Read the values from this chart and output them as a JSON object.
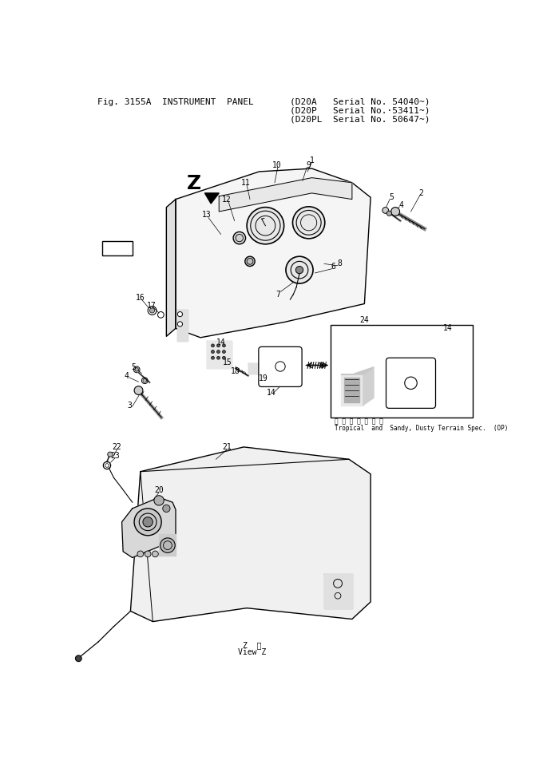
{
  "bg_color": "#ffffff",
  "line_color": "#000000",
  "fig_width": 6.75,
  "fig_height": 9.57,
  "title": "Fig. 3155A  INSTRUMENT  PANEL",
  "t1": "(D20A   Serial No. 54040~)",
  "t2": "(D20P   Serial No.·53411~)",
  "t3": "(D20PL  Serial No. 50647~)"
}
